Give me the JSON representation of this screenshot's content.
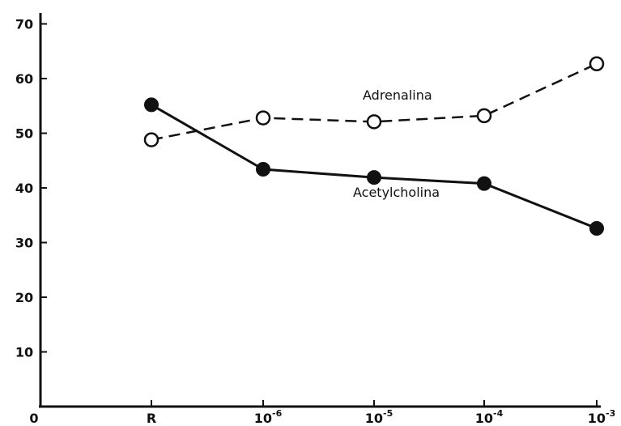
{
  "chart_data": {
    "type": "line",
    "categories": [
      "R",
      "10-6",
      "10-5",
      "10-4",
      "10-3"
    ],
    "x_tick_labels": [
      {
        "base": "R",
        "exp": ""
      },
      {
        "base": "10",
        "exp": "-6"
      },
      {
        "base": "10",
        "exp": "-5"
      },
      {
        "base": "10",
        "exp": "-4"
      },
      {
        "base": "10",
        "exp": "-3"
      }
    ],
    "x_origin_label": "0",
    "y_ticks": [
      10,
      20,
      30,
      40,
      50,
      60,
      70
    ],
    "ylim": [
      0,
      70
    ],
    "grid": false,
    "legend": "none",
    "series": [
      {
        "name": "Adrenalina",
        "values": [
          48.8,
          52.8,
          52.1,
          53.2,
          62.7
        ],
        "marker": "open-circle",
        "line_style": "dashed",
        "color": "#111111"
      },
      {
        "name": "Acetylcholina",
        "values": [
          55.2,
          43.4,
          41.9,
          40.8,
          32.6
        ],
        "marker": "filled-circle",
        "line_style": "solid",
        "color": "#111111"
      }
    ]
  }
}
